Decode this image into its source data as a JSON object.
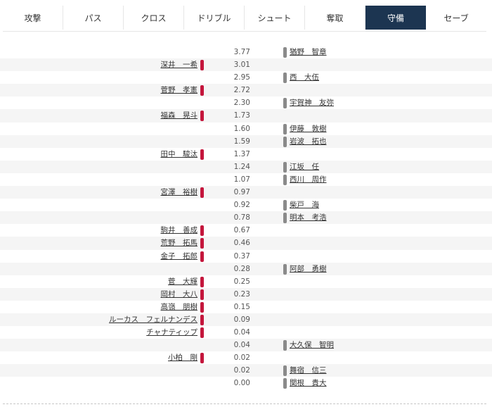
{
  "tabs": [
    {
      "label": "攻撃",
      "active": false
    },
    {
      "label": "パス",
      "active": false
    },
    {
      "label": "クロス",
      "active": false
    },
    {
      "label": "ドリブル",
      "active": false
    },
    {
      "label": "シュート",
      "active": false
    },
    {
      "label": "奪取",
      "active": false
    },
    {
      "label": "守備",
      "active": true
    },
    {
      "label": "セーブ",
      "active": false
    }
  ],
  "colors": {
    "active_tab": "#1c3551",
    "left_team": "#c4163c",
    "right_team": "#8a8a8a"
  },
  "rows": [
    {
      "value": "3.77",
      "left": "",
      "right": "猶野　智章"
    },
    {
      "value": "3.01",
      "left": "深井　一希",
      "right": ""
    },
    {
      "value": "2.95",
      "left": "",
      "right": "西　大伍"
    },
    {
      "value": "2.72",
      "left": "菅野　孝憲",
      "right": ""
    },
    {
      "value": "2.30",
      "left": "",
      "right": "宇賀神　友弥"
    },
    {
      "value": "1.73",
      "left": "福森　晃斗",
      "right": ""
    },
    {
      "value": "1.60",
      "left": "",
      "right": "伊藤　敦樹"
    },
    {
      "value": "1.59",
      "left": "",
      "right": "岩波　拓也"
    },
    {
      "value": "1.37",
      "left": "田中　駿汰",
      "right": ""
    },
    {
      "value": "1.24",
      "left": "",
      "right": "江坂　任"
    },
    {
      "value": "1.07",
      "left": "",
      "right": "西川　周作"
    },
    {
      "value": "0.97",
      "left": "宮澤　裕樹",
      "right": ""
    },
    {
      "value": "0.92",
      "left": "",
      "right": "柴戸　海"
    },
    {
      "value": "0.78",
      "left": "",
      "right": "明本　考浩"
    },
    {
      "value": "0.67",
      "left": "駒井　善成",
      "right": ""
    },
    {
      "value": "0.46",
      "left": "荒野　拓馬",
      "right": ""
    },
    {
      "value": "0.37",
      "left": "金子　拓郎",
      "right": ""
    },
    {
      "value": "0.28",
      "left": "",
      "right": "阿部　勇樹"
    },
    {
      "value": "0.25",
      "left": "菅　大輝",
      "right": ""
    },
    {
      "value": "0.23",
      "left": "岡村　大八",
      "right": ""
    },
    {
      "value": "0.15",
      "left": "高嶺　朋樹",
      "right": ""
    },
    {
      "value": "0.09",
      "left": "ルーカス　フェルナンデス",
      "right": ""
    },
    {
      "value": "0.04",
      "left": "チャナティップ",
      "right": ""
    },
    {
      "value": "0.04",
      "left": "",
      "right": "大久保　智明"
    },
    {
      "value": "0.02",
      "left": "小柏　剛",
      "right": ""
    },
    {
      "value": "0.02",
      "left": "",
      "right": "舞宿　信三"
    },
    {
      "value": "0.00",
      "left": "",
      "right": "関根　貴大"
    }
  ]
}
